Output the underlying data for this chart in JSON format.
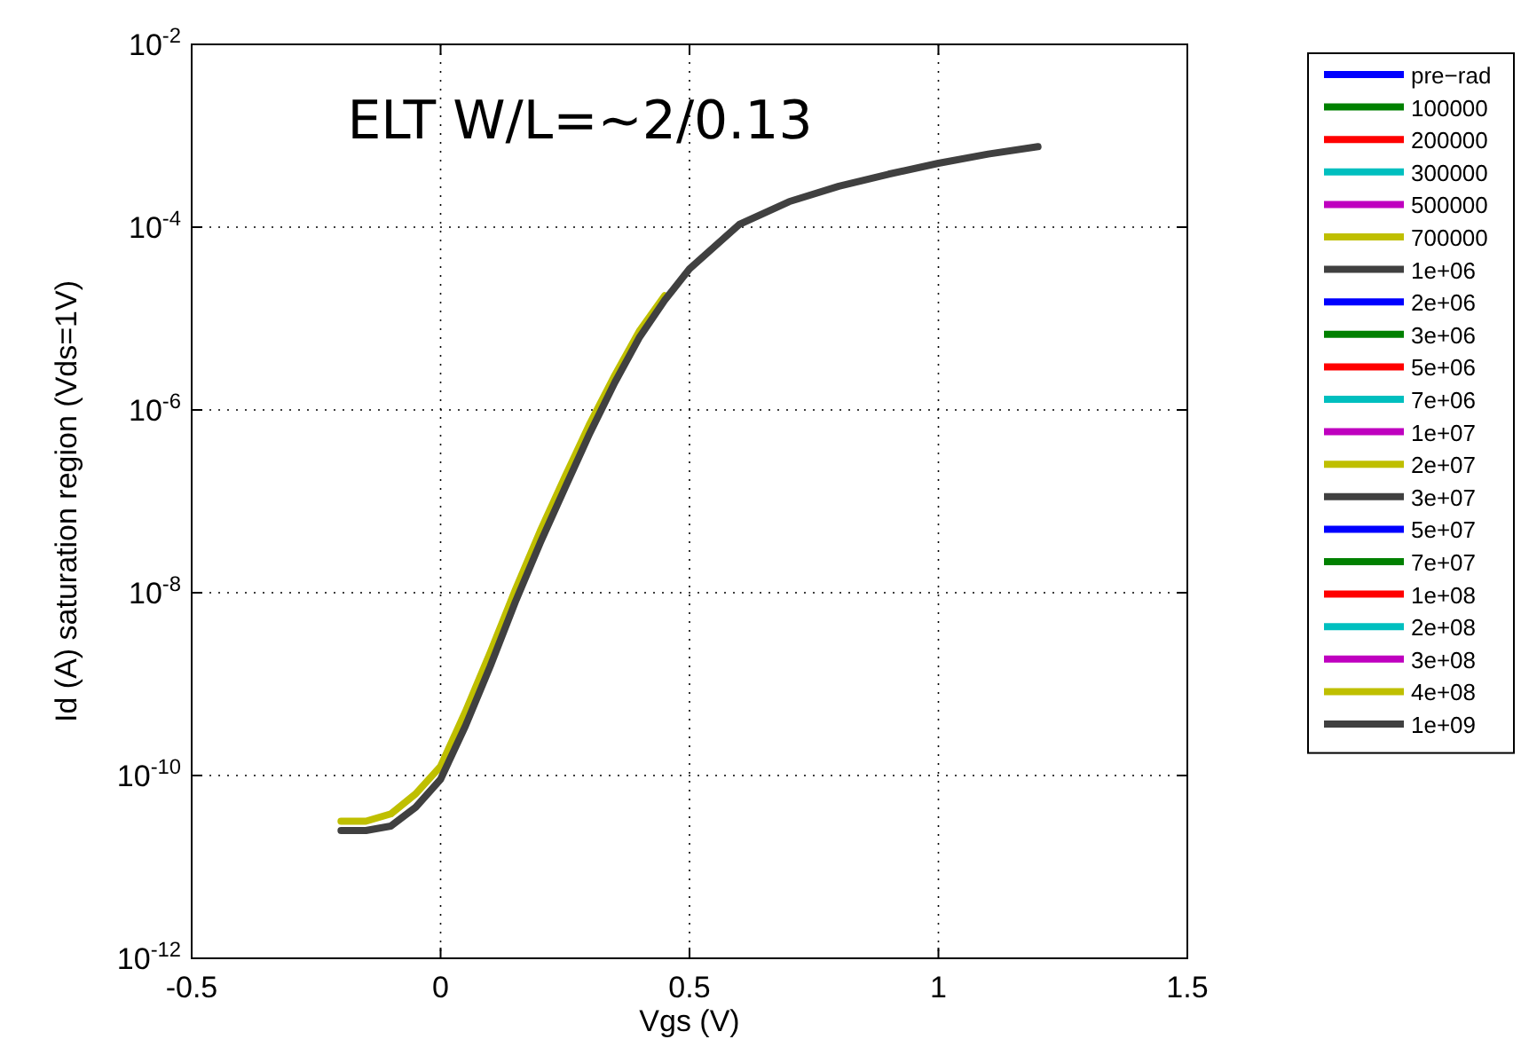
{
  "chart_data": {
    "type": "line",
    "title": "ELT W/L=~2/0.13",
    "xlabel": "Vgs (V)",
    "ylabel": "Id (A) saturation region (Vds=1V)",
    "log": "y",
    "grid": true,
    "legend": "right",
    "line_style": "solid",
    "marker": "none",
    "xlim": [
      -0.5,
      1.5
    ],
    "xticks": [
      -0.5,
      0,
      0.5,
      1,
      1.5
    ],
    "ylim": [
      1e-12,
      0.01
    ],
    "yticks": [
      {
        "value": 1e-12,
        "label": "10$^{-12}$"
      },
      {
        "value": 1e-10,
        "label": "10$^{-10}$"
      },
      {
        "value": 1e-08,
        "label": "10$^{-8}$"
      },
      {
        "value": 1e-06,
        "label": "10$^{-6}$"
      },
      {
        "value": 0.0001,
        "label": "10$^{-4}$"
      },
      {
        "value": 0.01,
        "label": "10$^{-2}$"
      }
    ],
    "x": [
      -0.2,
      -0.15,
      -0.1,
      -0.05,
      0,
      0.05,
      0.1,
      0.15,
      0.2,
      0.25,
      0.3,
      0.35,
      0.4,
      0.45,
      0.5,
      0.6,
      0.7,
      0.8,
      0.9,
      1.0,
      1.1,
      1.2
    ],
    "series": [
      {
        "name": "pre−rad",
        "color": "#0000ff",
        "values": [
          null,
          null,
          null,
          null,
          null,
          null,
          null,
          null,
          null,
          null,
          null,
          null,
          null,
          null,
          null,
          null,
          null,
          null,
          null,
          null,
          null,
          null
        ]
      },
      {
        "name": "100000",
        "color": "#008000",
        "values": [
          null,
          null,
          null,
          null,
          null,
          null,
          null,
          null,
          null,
          null,
          null,
          null,
          null,
          null,
          null,
          null,
          null,
          null,
          null,
          null,
          null,
          null
        ]
      },
      {
        "name": "200000",
        "color": "#ff0000",
        "values": [
          null,
          null,
          null,
          null,
          null,
          null,
          null,
          null,
          null,
          null,
          null,
          null,
          null,
          null,
          null,
          null,
          null,
          null,
          null,
          null,
          null,
          null
        ]
      },
      {
        "name": "300000",
        "color": "#00bfbf",
        "values": [
          null,
          null,
          null,
          null,
          null,
          null,
          null,
          null,
          null,
          null,
          null,
          null,
          null,
          null,
          null,
          null,
          null,
          null,
          null,
          null,
          null,
          null
        ]
      },
      {
        "name": "500000",
        "color": "#bf00bf",
        "values": [
          null,
          null,
          null,
          null,
          null,
          null,
          null,
          null,
          null,
          null,
          null,
          null,
          null,
          null,
          null,
          null,
          null,
          null,
          null,
          null,
          null,
          null
        ]
      },
      {
        "name": "700000",
        "color": "#bfbf00",
        "values": [
          null,
          null,
          null,
          null,
          null,
          null,
          null,
          null,
          null,
          null,
          null,
          null,
          null,
          null,
          null,
          null,
          null,
          null,
          null,
          null,
          null,
          null
        ]
      },
      {
        "name": "1e+06",
        "color": "#404040",
        "values": [
          null,
          null,
          null,
          null,
          null,
          null,
          null,
          null,
          null,
          null,
          null,
          null,
          null,
          null,
          null,
          null,
          null,
          null,
          null,
          null,
          null,
          null
        ]
      },
      {
        "name": "2e+06",
        "color": "#0000ff",
        "values": [
          null,
          null,
          null,
          null,
          null,
          null,
          null,
          null,
          null,
          null,
          null,
          null,
          null,
          null,
          null,
          null,
          null,
          null,
          null,
          null,
          null,
          null
        ]
      },
      {
        "name": "3e+06",
        "color": "#008000",
        "values": [
          null,
          null,
          null,
          null,
          null,
          null,
          null,
          null,
          null,
          null,
          null,
          null,
          null,
          null,
          null,
          null,
          null,
          null,
          null,
          null,
          null,
          null
        ]
      },
      {
        "name": "5e+06",
        "color": "#ff0000",
        "values": [
          null,
          null,
          null,
          null,
          null,
          null,
          null,
          null,
          null,
          null,
          null,
          null,
          null,
          null,
          null,
          null,
          null,
          null,
          null,
          null,
          null,
          null
        ]
      },
      {
        "name": "7e+06",
        "color": "#00bfbf",
        "values": [
          null,
          null,
          null,
          null,
          null,
          null,
          null,
          null,
          null,
          null,
          null,
          null,
          null,
          null,
          null,
          null,
          null,
          null,
          null,
          null,
          null,
          null
        ]
      },
      {
        "name": "1e+07",
        "color": "#bf00bf",
        "values": [
          null,
          null,
          null,
          null,
          null,
          null,
          null,
          null,
          null,
          null,
          null,
          null,
          null,
          null,
          null,
          null,
          null,
          null,
          null,
          null,
          null,
          null
        ]
      },
      {
        "name": "2e+07",
        "color": "#bfbf00",
        "values": [
          null,
          null,
          null,
          null,
          null,
          null,
          null,
          null,
          null,
          null,
          null,
          null,
          null,
          null,
          null,
          null,
          null,
          null,
          null,
          null,
          null,
          null
        ]
      },
      {
        "name": "3e+07",
        "color": "#404040",
        "values": [
          null,
          null,
          null,
          null,
          null,
          null,
          null,
          null,
          null,
          null,
          null,
          null,
          null,
          null,
          null,
          null,
          null,
          null,
          null,
          null,
          null,
          null
        ]
      },
      {
        "name": "5e+07",
        "color": "#0000ff",
        "values": [
          null,
          null,
          null,
          null,
          null,
          null,
          null,
          null,
          null,
          null,
          null,
          null,
          null,
          null,
          null,
          null,
          null,
          null,
          null,
          null,
          null,
          null
        ]
      },
      {
        "name": "7e+07",
        "color": "#008000",
        "values": [
          null,
          null,
          null,
          null,
          null,
          null,
          null,
          null,
          null,
          null,
          null,
          null,
          null,
          null,
          null,
          null,
          null,
          null,
          null,
          null,
          null,
          null
        ]
      },
      {
        "name": "1e+08",
        "color": "#ff0000",
        "values": [
          null,
          null,
          null,
          null,
          null,
          null,
          null,
          null,
          null,
          null,
          null,
          null,
          null,
          null,
          null,
          null,
          null,
          null,
          null,
          null,
          null,
          null
        ]
      },
      {
        "name": "2e+08",
        "color": "#00bfbf",
        "values": [
          null,
          null,
          null,
          null,
          null,
          null,
          null,
          null,
          null,
          null,
          null,
          null,
          null,
          null,
          null,
          null,
          null,
          null,
          null,
          null,
          null,
          null
        ]
      },
      {
        "name": "3e+08",
        "color": "#bf00bf",
        "values": [
          null,
          null,
          null,
          null,
          null,
          null,
          null,
          null,
          null,
          null,
          null,
          null,
          null,
          null,
          null,
          null,
          null,
          null,
          null,
          null,
          null,
          null
        ]
      },
      {
        "name": "4e+08",
        "color": "#bfbf00",
        "values": [
          3.16e-11,
          3.16e-11,
          3.8e-11,
          6.3e-11,
          1.26e-10,
          5e-10,
          2.24e-09,
          1.07e-08,
          4.7e-08,
          1.86e-07,
          7.1e-07,
          2.4e-06,
          7.4e-06,
          1.78e-05,
          null,
          null,
          null,
          null,
          null,
          null,
          null,
          null
        ]
      },
      {
        "name": "1e+09",
        "color": "#404040",
        "values": [
          2.5e-11,
          2.5e-11,
          2.8e-11,
          4.5e-11,
          9.1e-11,
          3.5e-10,
          1.58e-09,
          7.9e-09,
          3.5e-08,
          1.41e-07,
          5.6e-07,
          2e-06,
          6.3e-06,
          1.58e-05,
          3.5e-05,
          0.000107,
          0.00019,
          0.00028,
          0.00038,
          0.0005,
          0.00063,
          0.00076
        ]
      }
    ]
  }
}
